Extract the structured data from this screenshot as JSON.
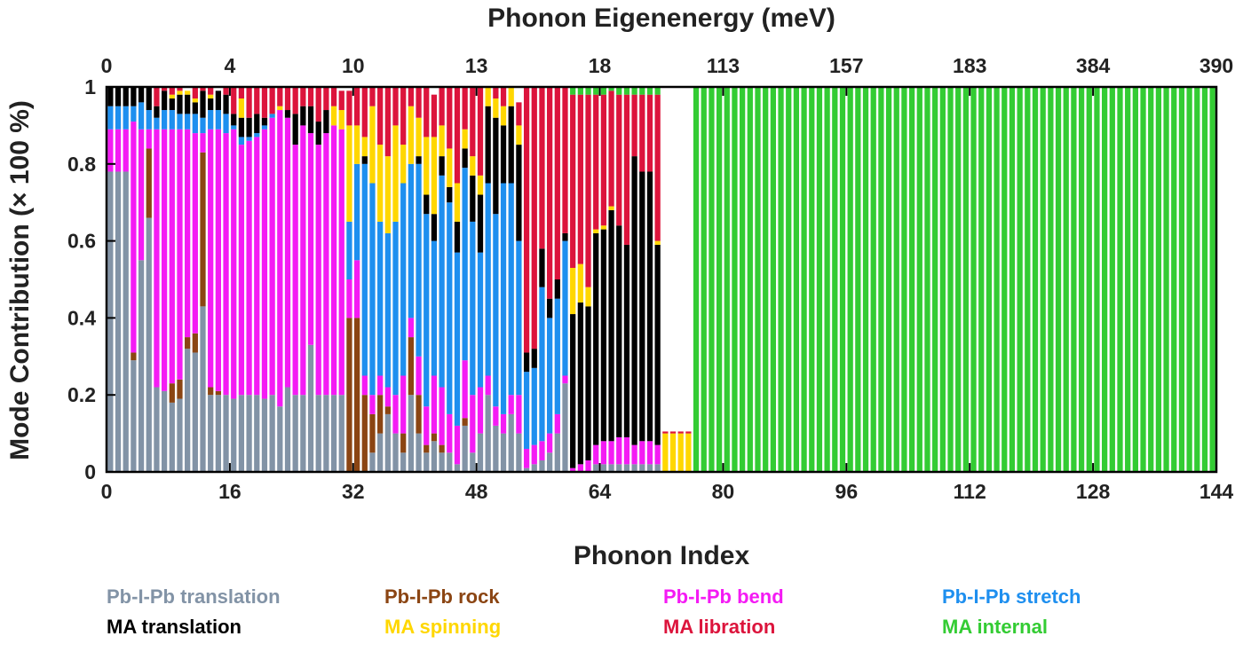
{
  "chart_data": {
    "type": "bar",
    "stacked": true,
    "title": "",
    "xlabel": "Phonon Index",
    "ylabel": "Mode Contribution (× 100 %)",
    "x2label": "Phonon Eigenenergy (meV)",
    "xlim": [
      0,
      144
    ],
    "ylim": [
      0,
      1
    ],
    "x_ticks": [
      "0",
      "16",
      "32",
      "48",
      "64",
      "80",
      "96",
      "112",
      "128",
      "144"
    ],
    "y_ticks": [
      "0",
      "0.2",
      "0.4",
      "0.6",
      "0.8",
      "1"
    ],
    "x2_ticks": [
      "0",
      "4",
      "10",
      "13",
      "18",
      "113",
      "157",
      "183",
      "384",
      "390"
    ],
    "grid": false,
    "legend_position": "bottom",
    "categories_note": "phonon index 1-144",
    "series": [
      {
        "name": "Pb-I-Pb translation",
        "color": "#8293A6",
        "values": [
          0.78,
          0.78,
          0.78,
          0.29,
          0.55,
          0.66,
          0.22,
          0.21,
          0.18,
          0.19,
          0.32,
          0.31,
          0.43,
          0.2,
          0.2,
          0.2,
          0.19,
          0.2,
          0.2,
          0.2,
          0.19,
          0.2,
          0.17,
          0.22,
          0.2,
          0.2,
          0.33,
          0.2,
          0.2,
          0.2,
          0.2,
          0.0,
          0.0,
          0.0,
          0.05,
          0.1,
          0.15,
          0.1,
          0.05,
          0.2,
          0.1,
          0.05,
          0.08,
          0.05,
          0.05,
          0.02,
          0.12,
          0.05,
          0.1,
          0.2,
          0.12,
          0.1,
          0.15,
          0.1,
          0.01,
          0.02,
          0.03,
          0.05,
          0.1,
          0.23,
          0.0,
          0.0,
          0.0,
          0.02,
          0.02,
          0.02,
          0.02,
          0.02,
          0.02,
          0.02,
          0.02,
          0.02,
          0,
          0,
          0,
          0,
          0,
          0,
          0,
          0,
          0,
          0,
          0,
          0,
          0,
          0,
          0,
          0,
          0,
          0,
          0,
          0,
          0,
          0,
          0,
          0,
          0,
          0,
          0,
          0,
          0,
          0,
          0,
          0,
          0,
          0,
          0,
          0,
          0,
          0,
          0,
          0,
          0,
          0,
          0,
          0,
          0,
          0,
          0,
          0,
          0,
          0,
          0,
          0,
          0,
          0,
          0,
          0,
          0,
          0,
          0,
          0,
          0,
          0,
          0,
          0,
          0,
          0,
          0,
          0,
          0,
          0,
          0,
          0
        ]
      },
      {
        "name": "Pb-I-Pb rock",
        "color": "#8B4513",
        "values": [
          0,
          0,
          0,
          0.02,
          0,
          0.18,
          0,
          0,
          0.05,
          0.05,
          0.03,
          0.05,
          0.4,
          0.02,
          0.01,
          0,
          0,
          0,
          0,
          0,
          0,
          0,
          0,
          0,
          0,
          0,
          0,
          0,
          0,
          0,
          0,
          0.4,
          0.4,
          0.2,
          0.1,
          0.1,
          0.02,
          0,
          0.05,
          0.15,
          0.1,
          0.02,
          0.02,
          0.02,
          0,
          0,
          0.02,
          0,
          0,
          0,
          0,
          0,
          0,
          0,
          0,
          0,
          0,
          0,
          0,
          0,
          0,
          0,
          0,
          0,
          0,
          0,
          0,
          0,
          0,
          0,
          0,
          0,
          0,
          0,
          0,
          0,
          0,
          0,
          0,
          0,
          0,
          0,
          0,
          0,
          0,
          0,
          0,
          0,
          0,
          0,
          0,
          0,
          0,
          0,
          0,
          0,
          0,
          0,
          0,
          0,
          0,
          0,
          0,
          0,
          0,
          0,
          0,
          0,
          0,
          0,
          0,
          0,
          0,
          0,
          0,
          0,
          0,
          0,
          0,
          0,
          0,
          0,
          0,
          0,
          0,
          0,
          0,
          0,
          0,
          0,
          0,
          0,
          0,
          0,
          0,
          0,
          0,
          0,
          0,
          0,
          0,
          0
        ]
      },
      {
        "name": "Pb-I-Pb bend",
        "color": "#F41BF4",
        "values": [
          0.11,
          0.11,
          0.11,
          0.6,
          0.34,
          0.05,
          0.67,
          0.68,
          0.66,
          0.65,
          0.54,
          0.52,
          0.05,
          0.67,
          0.68,
          0.68,
          0.7,
          0.65,
          0.66,
          0.67,
          0.7,
          0.72,
          0.77,
          0.7,
          0.65,
          0.7,
          0.55,
          0.65,
          0.68,
          0.7,
          0.69,
          0.1,
          0.15,
          0.05,
          0.05,
          0.05,
          0.05,
          0.1,
          0.15,
          0.05,
          0.1,
          0.1,
          0.15,
          0.15,
          0.1,
          0.1,
          0.15,
          0.15,
          0.12,
          0.05,
          0.05,
          0.05,
          0.05,
          0.1,
          0.05,
          0.05,
          0.05,
          0.05,
          0.05,
          0.02,
          0.01,
          0.02,
          0.03,
          0.05,
          0.06,
          0.06,
          0.07,
          0.07,
          0.05,
          0.06,
          0.06,
          0.05,
          0,
          0,
          0,
          0,
          0,
          0,
          0,
          0,
          0,
          0,
          0,
          0,
          0,
          0,
          0,
          0,
          0,
          0,
          0,
          0,
          0,
          0,
          0,
          0,
          0,
          0,
          0,
          0,
          0,
          0,
          0,
          0,
          0,
          0,
          0,
          0,
          0,
          0,
          0,
          0,
          0,
          0,
          0,
          0,
          0,
          0,
          0,
          0,
          0,
          0,
          0,
          0,
          0,
          0,
          0,
          0,
          0,
          0,
          0,
          0,
          0,
          0,
          0,
          0,
          0,
          0,
          0,
          0,
          0,
          0,
          0,
          0
        ]
      },
      {
        "name": "Pb-I-Pb stretch",
        "color": "#1E8FEF",
        "values": [
          0.06,
          0.06,
          0.06,
          0.04,
          0.07,
          0.05,
          0.03,
          0.05,
          0.05,
          0.04,
          0.04,
          0.05,
          0.04,
          0.05,
          0.05,
          0.05,
          0.01,
          0.02,
          0.01,
          0.01,
          0.01,
          0.01,
          0.0,
          0.0,
          0.0,
          0.0,
          0.0,
          0.0,
          0.0,
          0.0,
          0.0,
          0.15,
          0.25,
          0.55,
          0.55,
          0.4,
          0.4,
          0.45,
          0.5,
          0.4,
          0.5,
          0.5,
          0.35,
          0.55,
          0.55,
          0.45,
          0.5,
          0.45,
          0.35,
          0.5,
          0.5,
          0.6,
          0.55,
          0.4,
          0.2,
          0.2,
          0.4,
          0.3,
          0.3,
          0.35,
          0,
          0,
          0,
          0,
          0,
          0,
          0,
          0,
          0,
          0,
          0,
          0,
          0,
          0,
          0,
          0,
          0,
          0,
          0,
          0,
          0,
          0,
          0,
          0,
          0,
          0,
          0,
          0,
          0,
          0,
          0,
          0,
          0,
          0,
          0,
          0,
          0,
          0,
          0,
          0,
          0,
          0,
          0,
          0,
          0,
          0,
          0,
          0,
          0,
          0,
          0,
          0,
          0,
          0,
          0,
          0,
          0,
          0,
          0,
          0,
          0,
          0,
          0,
          0,
          0,
          0,
          0,
          0,
          0,
          0,
          0,
          0,
          0,
          0,
          0,
          0,
          0,
          0,
          0,
          0,
          0,
          0,
          0,
          0
        ]
      },
      {
        "name": "MA translation",
        "color": "#000000",
        "values": [
          0.05,
          0.05,
          0.05,
          0.05,
          0.04,
          0.06,
          0.03,
          0.05,
          0.03,
          0.05,
          0.05,
          0.03,
          0.07,
          0.03,
          0.05,
          0.05,
          0.03,
          0.05,
          0.05,
          0.05,
          0.02,
          0.0,
          0.0,
          0.02,
          0.08,
          0.05,
          0.07,
          0.06,
          0.06,
          0.0,
          0.0,
          0.0,
          0.0,
          0.02,
          0.0,
          0.0,
          0.0,
          0.0,
          0.0,
          0.0,
          0.02,
          0.05,
          0.07,
          0.05,
          0.04,
          0.08,
          0.05,
          0.12,
          0.15,
          0.2,
          0.25,
          0.15,
          0.2,
          0.25,
          0.05,
          0.05,
          0.1,
          0.05,
          0.05,
          0.02,
          0.4,
          0.42,
          0.4,
          0.55,
          0.55,
          0.6,
          0.55,
          0.5,
          0.75,
          0.7,
          0.7,
          0.52,
          0,
          0,
          0,
          0,
          0,
          0,
          0,
          0,
          0,
          0,
          0,
          0,
          0,
          0,
          0,
          0,
          0,
          0,
          0,
          0,
          0,
          0,
          0,
          0,
          0,
          0,
          0,
          0,
          0,
          0,
          0,
          0,
          0,
          0,
          0,
          0,
          0,
          0,
          0,
          0,
          0,
          0,
          0,
          0,
          0,
          0,
          0,
          0,
          0,
          0,
          0,
          0,
          0,
          0,
          0,
          0,
          0,
          0,
          0,
          0,
          0,
          0,
          0,
          0,
          0,
          0,
          0,
          0,
          0,
          0,
          0,
          0
        ]
      },
      {
        "name": "MA spinning",
        "color": "#FFD700",
        "values": [
          0,
          0,
          0,
          0,
          0,
          0,
          0,
          0,
          0.01,
          0.01,
          0.01,
          0.01,
          0,
          0.01,
          0,
          0,
          0,
          0.05,
          0,
          0,
          0,
          0,
          0.01,
          0,
          0,
          0,
          0,
          0,
          0,
          0.05,
          0.05,
          0.25,
          0.1,
          0.05,
          0.2,
          0.2,
          0.2,
          0.25,
          0.1,
          0.15,
          0.1,
          0.15,
          0.2,
          0.08,
          0.1,
          0.1,
          0.05,
          0.05,
          0.05,
          0.05,
          0.05,
          0.05,
          0.05,
          0.05,
          0.0,
          0.0,
          0.0,
          0.0,
          0.0,
          0.0,
          0.12,
          0.1,
          0.05,
          0.01,
          0.01,
          0.01,
          0.0,
          0.0,
          0.0,
          0.0,
          0.0,
          0.01,
          0.1,
          0.1,
          0.1,
          0.1,
          0,
          0,
          0,
          0,
          0,
          0,
          0,
          0,
          0,
          0,
          0,
          0,
          0,
          0,
          0,
          0,
          0,
          0,
          0,
          0,
          0,
          0,
          0,
          0,
          0,
          0,
          0,
          0,
          0,
          0,
          0,
          0,
          0,
          0,
          0,
          0,
          0,
          0,
          0,
          0,
          0,
          0,
          0,
          0,
          0,
          0,
          0,
          0,
          0,
          0,
          0,
          0,
          0,
          0,
          0,
          0,
          0,
          0,
          0,
          0,
          0,
          0,
          0,
          0,
          0,
          0,
          0,
          0,
          0,
          0,
          0,
          0
        ]
      },
      {
        "name": "MA libration",
        "color": "#DC143C",
        "values": [
          0,
          0,
          0,
          0,
          0,
          0,
          0.05,
          0.01,
          0.02,
          0.01,
          0,
          0.03,
          0.01,
          0.02,
          0,
          0.02,
          0.07,
          0.03,
          0.08,
          0.07,
          0.08,
          0.07,
          0.05,
          0.06,
          0.07,
          0.05,
          0.05,
          0.09,
          0.06,
          0.05,
          0.05,
          0.09,
          0.1,
          0.13,
          0.05,
          0.15,
          0.18,
          0.1,
          0.15,
          0.05,
          0.08,
          0.13,
          0.11,
          0.1,
          0.16,
          0.25,
          0.11,
          0.18,
          0.23,
          0.0,
          0.03,
          0.05,
          0.0,
          0.06,
          0.69,
          0.68,
          0.42,
          0.55,
          0.5,
          0.38,
          0.45,
          0.44,
          0.5,
          0.35,
          0.34,
          0.3,
          0.34,
          0.39,
          0.16,
          0.2,
          0.2,
          0.38,
          0.005,
          0.005,
          0.005,
          0.005,
          0,
          0,
          0,
          0,
          0,
          0,
          0,
          0,
          0,
          0,
          0,
          0,
          0,
          0,
          0,
          0,
          0,
          0,
          0,
          0,
          0,
          0,
          0,
          0,
          0,
          0,
          0,
          0,
          0,
          0,
          0,
          0,
          0,
          0,
          0,
          0,
          0,
          0,
          0,
          0,
          0,
          0,
          0,
          0,
          0,
          0,
          0,
          0,
          0,
          0,
          0,
          0,
          0,
          0,
          0,
          0,
          0,
          0,
          0,
          0,
          0,
          0,
          0,
          0,
          0,
          0,
          0,
          0,
          0,
          0,
          0,
          0
        ]
      },
      {
        "name": "MA internal",
        "color": "#33CC33",
        "values": [
          0,
          0,
          0,
          0,
          0,
          0,
          0,
          0,
          0,
          0,
          0,
          0,
          0,
          0,
          0,
          0,
          0,
          0,
          0,
          0,
          0,
          0,
          0,
          0,
          0,
          0,
          0,
          0,
          0,
          0,
          0,
          0,
          0,
          0,
          0,
          0,
          0,
          0,
          0,
          0,
          0.01,
          0.01,
          0,
          0.01,
          0,
          0,
          0,
          0,
          0,
          0,
          0,
          0,
          0,
          0,
          0,
          0,
          0,
          0,
          0,
          0,
          0.02,
          0.02,
          0.02,
          0.02,
          0.02,
          0.01,
          0.02,
          0.02,
          0.02,
          0.02,
          0.02,
          0.02,
          0,
          0,
          0,
          0,
          1,
          1,
          1,
          1,
          1,
          1,
          1,
          1,
          1,
          1,
          1,
          1,
          1,
          1,
          1,
          1,
          1,
          1,
          1,
          1,
          1,
          1,
          1,
          1,
          1,
          1,
          1,
          1,
          1,
          1,
          1,
          1,
          1,
          1,
          1,
          1,
          1,
          1,
          1,
          1,
          1,
          1,
          1,
          1,
          1,
          1,
          1,
          1,
          1,
          1,
          1,
          1,
          1,
          1,
          1,
          1,
          1,
          1,
          1,
          1,
          1,
          1,
          1,
          1,
          1,
          1,
          1,
          1
        ]
      }
    ]
  }
}
